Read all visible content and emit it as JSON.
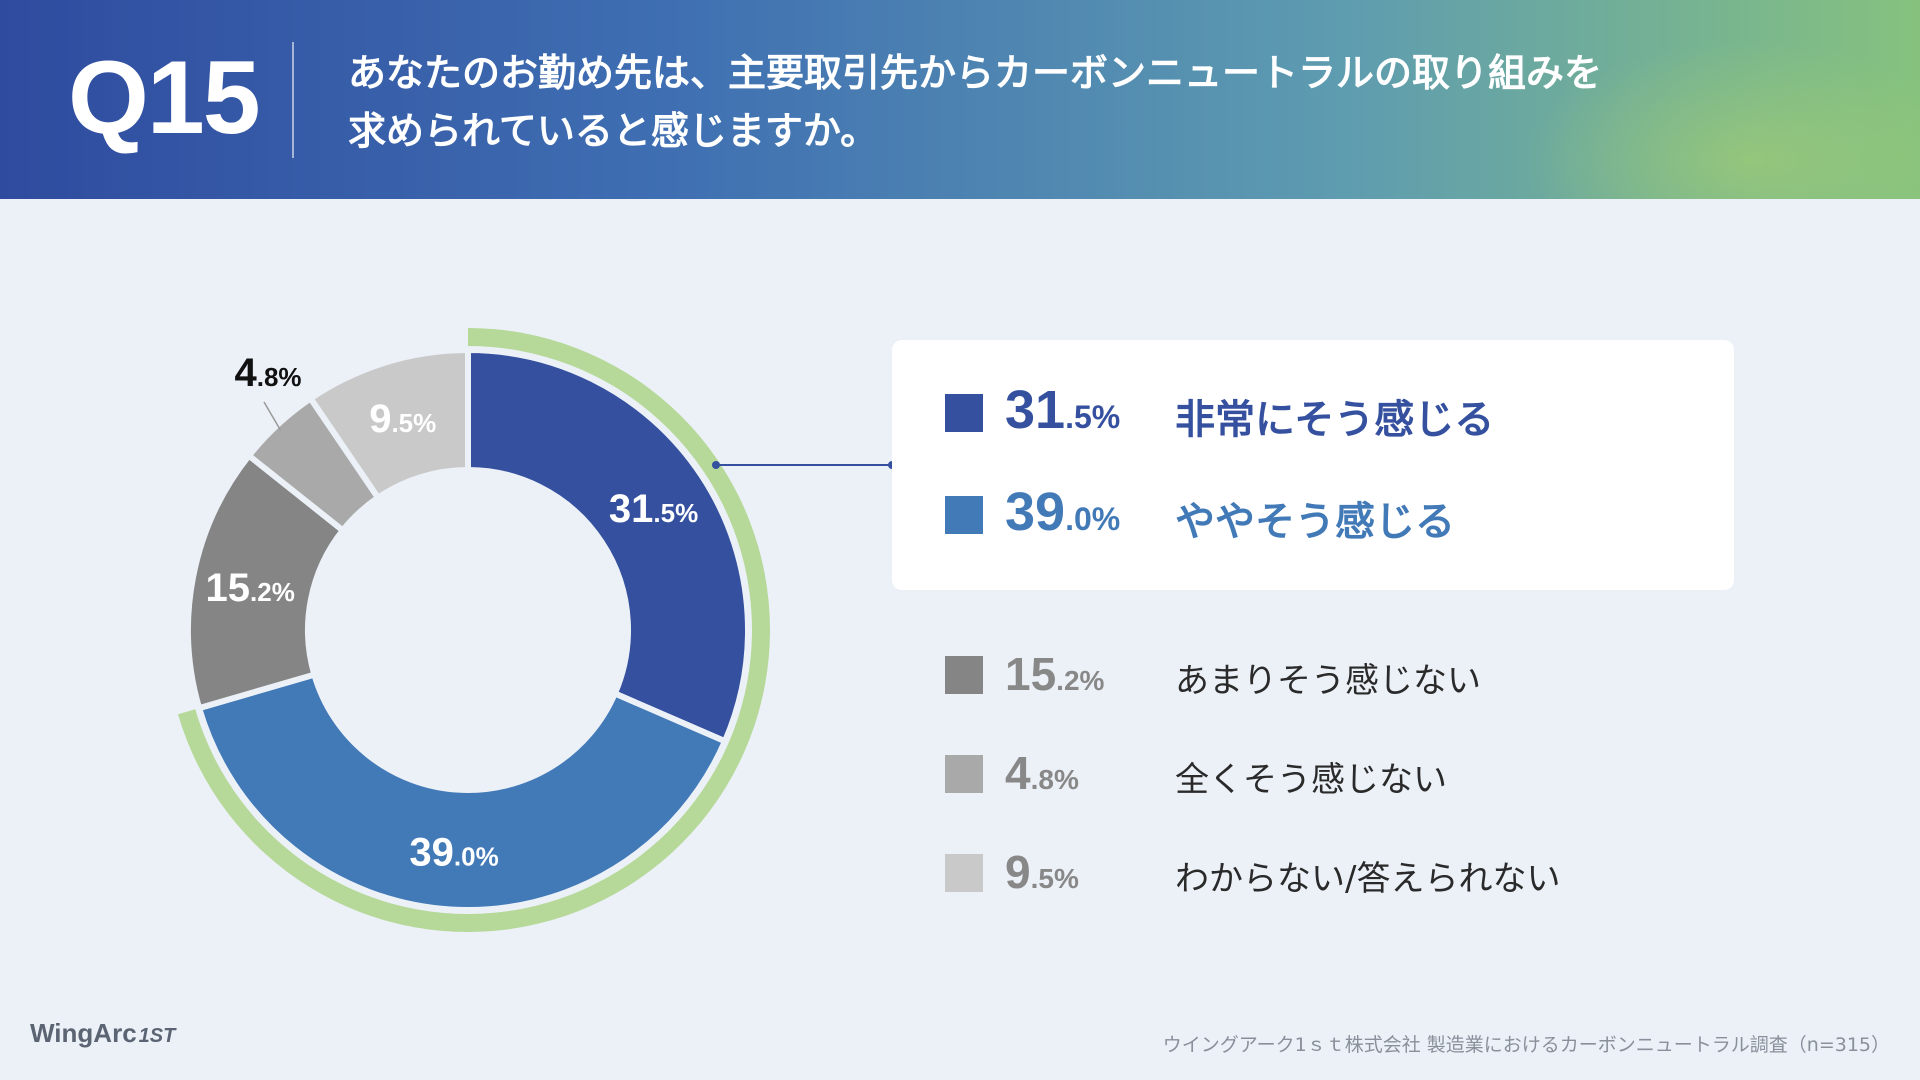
{
  "header": {
    "question_number": "Q15",
    "question_line1": "あなたのお勤め先は、主要取引先からカーボンニュートラルの取り組みを",
    "question_line2": "求められていると感じますか。"
  },
  "chart_data": {
    "type": "pie",
    "subtype": "donut",
    "highlighted_group": [
      "非常にそう感じる",
      "ややそう感じる"
    ],
    "slices": [
      {
        "label": "非常にそう感じる",
        "value": 31.5,
        "int": "31",
        "dec": ".5%",
        "color": "#34509f",
        "label_color": "#ffffff"
      },
      {
        "label": "ややそう感じる",
        "value": 39.0,
        "int": "39",
        "dec": ".0%",
        "color": "#4279b7",
        "label_color": "#ffffff"
      },
      {
        "label": "あまりそう感じない",
        "value": 15.2,
        "int": "15",
        "dec": ".2%",
        "color": "#858585",
        "label_color": "#ffffff"
      },
      {
        "label": "全くそう感じない",
        "value": 4.8,
        "int": "4",
        "dec": ".8%",
        "color": "#a9a9a9",
        "label_color": "#111111"
      },
      {
        "label": "わからない/答えられない",
        "value": 9.5,
        "int": "9",
        "dec": ".5%",
        "color": "#c9c9c9",
        "label_color": "#ffffff"
      }
    ],
    "highlight_color": "#b6d99a"
  },
  "legend": {
    "items": [
      {
        "int": "31",
        "dec": ".5%",
        "label": "非常にそう感じる",
        "color": "#34509f",
        "text_color": "#34509f"
      },
      {
        "int": "39",
        "dec": ".0%",
        "label": "ややそう感じる",
        "color": "#4279b7",
        "text_color": "#4279b7"
      },
      {
        "int": "15",
        "dec": ".2%",
        "label": "あまりそう感じない",
        "color": "#858585",
        "text_color": "#888888"
      },
      {
        "int": "4",
        "dec": ".8%",
        "label": "全くそう感じない",
        "color": "#a9a9a9",
        "text_color": "#888888"
      },
      {
        "int": "9",
        "dec": ".5%",
        "label": "わからない/答えられない",
        "color": "#c9c9c9",
        "text_color": "#888888"
      }
    ]
  },
  "footer": {
    "logo": "WingArc",
    "logo_suffix": "1ST",
    "source": "ウイングアーク1ｓｔ株式会社 製造業におけるカーボンニュートラル調査（n=315）"
  }
}
